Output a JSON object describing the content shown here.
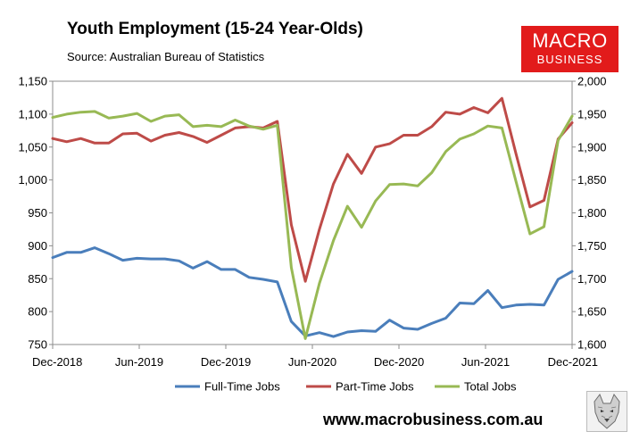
{
  "title": "Youth Employment (15-24 Year-Olds)",
  "subtitle": "Source: Australian Bureau of Statistics",
  "logo": {
    "line1": "MACRO",
    "line2": "BUSINESS"
  },
  "footer": {
    "url": "www.macrobusiness.com.au"
  },
  "colors": {
    "full_time": "#4a7ebb",
    "part_time": "#be4b48",
    "total": "#98b954",
    "plot_bg": "#ffffff",
    "logo_bg": "#e21b1b"
  },
  "chart_data": {
    "type": "line",
    "x_tick_labels": [
      "Dec-2018",
      "Jun-2019",
      "Dec-2019",
      "Jun-2020",
      "Dec-2020",
      "Jun-2021",
      "Dec-2021"
    ],
    "x_start": "Dec-2018",
    "x_end": "Dec-2021",
    "y_left": {
      "min": 750,
      "max": 1150,
      "step": 50,
      "tick_labels": [
        "750",
        "800",
        "850",
        "900",
        "950",
        "1,000",
        "1,050",
        "1,100",
        "1,150"
      ]
    },
    "y_right": {
      "min": 1600,
      "max": 2000,
      "step": 50,
      "tick_labels": [
        "1,600",
        "1,650",
        "1,700",
        "1,750",
        "1,800",
        "1,850",
        "1,900",
        "1,950",
        "2,000"
      ]
    },
    "grid": false,
    "legend_position": "bottom",
    "series": [
      {
        "name": "Full-Time Jobs",
        "axis": "left",
        "values": [
          882,
          890,
          890,
          897,
          888,
          878,
          881,
          880,
          880,
          877,
          866,
          876,
          864,
          864,
          852,
          849,
          845,
          785,
          763,
          768,
          762,
          769,
          771,
          770,
          787,
          775,
          773,
          782,
          790,
          813,
          812,
          832,
          806,
          810,
          811,
          810,
          849,
          861
        ]
      },
      {
        "name": "Part-Time Jobs",
        "axis": "left",
        "values": [
          1063,
          1058,
          1063,
          1056,
          1056,
          1070,
          1071,
          1059,
          1068,
          1072,
          1066,
          1057,
          1068,
          1079,
          1081,
          1079,
          1089,
          932,
          846,
          925,
          994,
          1039,
          1010,
          1050,
          1055,
          1068,
          1068,
          1081,
          1103,
          1100,
          1110,
          1102,
          1124,
          1040,
          959,
          969,
          1062,
          1087
        ]
      },
      {
        "name": "Total Jobs",
        "axis": "right",
        "values": [
          1945,
          1950,
          1953,
          1954,
          1944,
          1947,
          1951,
          1939,
          1947,
          1949,
          1931,
          1933,
          1931,
          1941,
          1932,
          1927,
          1933,
          1717,
          1609,
          1693,
          1758,
          1810,
          1778,
          1818,
          1843,
          1844,
          1841,
          1861,
          1893,
          1912,
          1920,
          1932,
          1929,
          1848,
          1768,
          1779,
          1910,
          1947
        ]
      }
    ]
  }
}
